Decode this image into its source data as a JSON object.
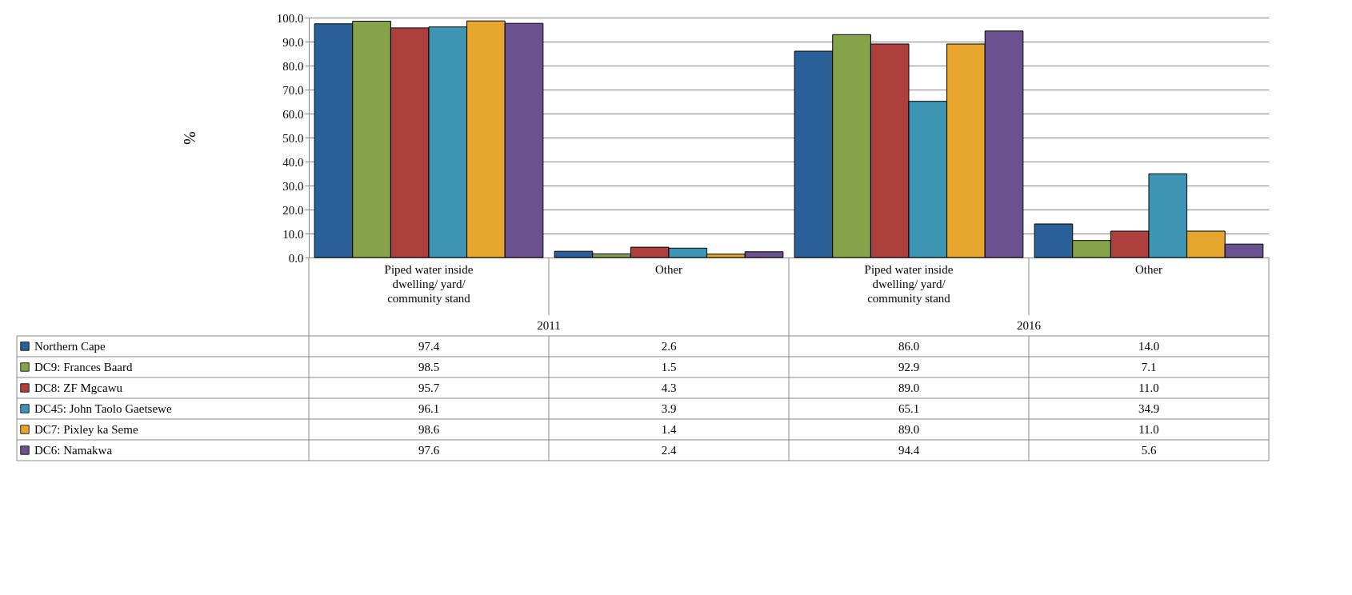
{
  "chart_data": {
    "type": "bar",
    "ylabel": "%",
    "categories": [
      "Piped water inside dwelling/ yard/ community stand",
      "Other",
      "Piped water inside dwelling/ yard/ community stand",
      "Other"
    ],
    "annotations": [
      "2011",
      "2016"
    ],
    "series": [
      {
        "name": "Northern Cape",
        "color": "#2b5f97",
        "values": [
          97.4,
          2.6,
          86.0,
          14.0
        ],
        "value_labels": [
          "97.4",
          "2.6",
          "86.0",
          "14.0"
        ]
      },
      {
        "name": "DC9: Frances Baard",
        "color": "#86a34a",
        "values": [
          98.5,
          1.5,
          92.9,
          7.1
        ],
        "value_labels": [
          "98.5",
          "1.5",
          "92.9",
          "7.1"
        ]
      },
      {
        "name": "DC8: ZF Mgcawu",
        "color": "#ad403d",
        "values": [
          95.7,
          4.3,
          89.0,
          11.0
        ],
        "value_labels": [
          "95.7",
          "4.3",
          "89.0",
          "11.0"
        ]
      },
      {
        "name": "DC45: John Taolo Gaetsewe",
        "color": "#3d95b3",
        "values": [
          96.1,
          3.9,
          65.1,
          34.9
        ],
        "value_labels": [
          "96.1",
          "3.9",
          "65.1",
          "34.9"
        ]
      },
      {
        "name": "DC7: Pixley ka Seme",
        "color": "#e6a62d",
        "values": [
          98.6,
          1.4,
          89.0,
          11.0
        ],
        "value_labels": [
          "98.6",
          "1.4",
          "89.0",
          "11.0"
        ]
      },
      {
        "name": "DC6: Namakwa",
        "color": "#6a5190",
        "values": [
          97.6,
          2.4,
          94.4,
          5.6
        ],
        "value_labels": [
          "97.6",
          "2.4",
          "94.4",
          "5.6"
        ]
      }
    ],
    "ylim": [
      0,
      100
    ],
    "yticks": [
      {
        "value": 0,
        "label": "0.0"
      },
      {
        "value": 10,
        "label": "10.0"
      },
      {
        "value": 20,
        "label": "20.0"
      },
      {
        "value": 30,
        "label": "30.0"
      },
      {
        "value": 40,
        "label": "40.0"
      },
      {
        "value": 50,
        "label": "50.0"
      },
      {
        "value": 60,
        "label": "60.0"
      },
      {
        "value": 70,
        "label": "70.0"
      },
      {
        "value": 80,
        "label": "80.0"
      },
      {
        "value": 90,
        "label": "90.0"
      },
      {
        "value": 100,
        "label": "100.0"
      }
    ],
    "grid": "y",
    "legend": "bottom"
  }
}
